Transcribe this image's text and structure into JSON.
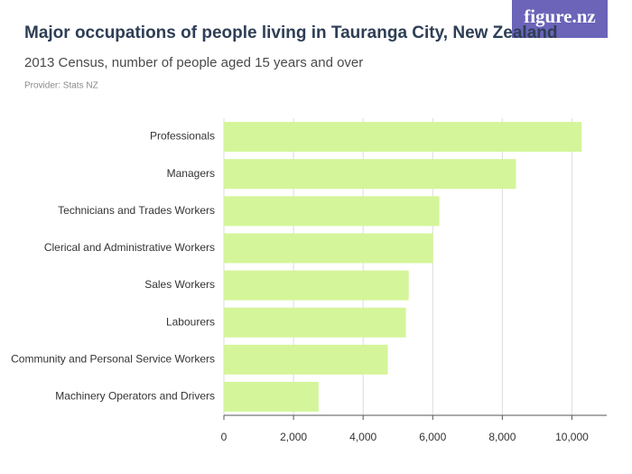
{
  "brand": "figure.nz",
  "chart_data": {
    "type": "hbar",
    "title": "Major occupations of people living in Tauranga City, New Zealand",
    "subtitle": "2013 Census, number of people aged 15 years and over",
    "provider": "Provider: Stats NZ",
    "categories": [
      "Professionals",
      "Managers",
      "Technicians and Trades Workers",
      "Clerical and Administrative Workers",
      "Sales Workers",
      "Labourers",
      "Community and Personal Service Workers",
      "Machinery Operators and Drivers"
    ],
    "values": [
      10280,
      8390,
      6190,
      6010,
      5310,
      5230,
      4710,
      2720
    ],
    "color": "#d4f59a",
    "xlim": [
      0,
      11000
    ],
    "xticks": [
      0,
      {
        "value": 2000,
        "label": "2,000"
      },
      {
        "value": 4000,
        "label": "4,000"
      },
      {
        "value": 6000,
        "label": "6,000"
      },
      {
        "value": 8000,
        "label": "8,000"
      },
      {
        "value": 10000,
        "label": "10,000"
      }
    ],
    "grid": true
  }
}
